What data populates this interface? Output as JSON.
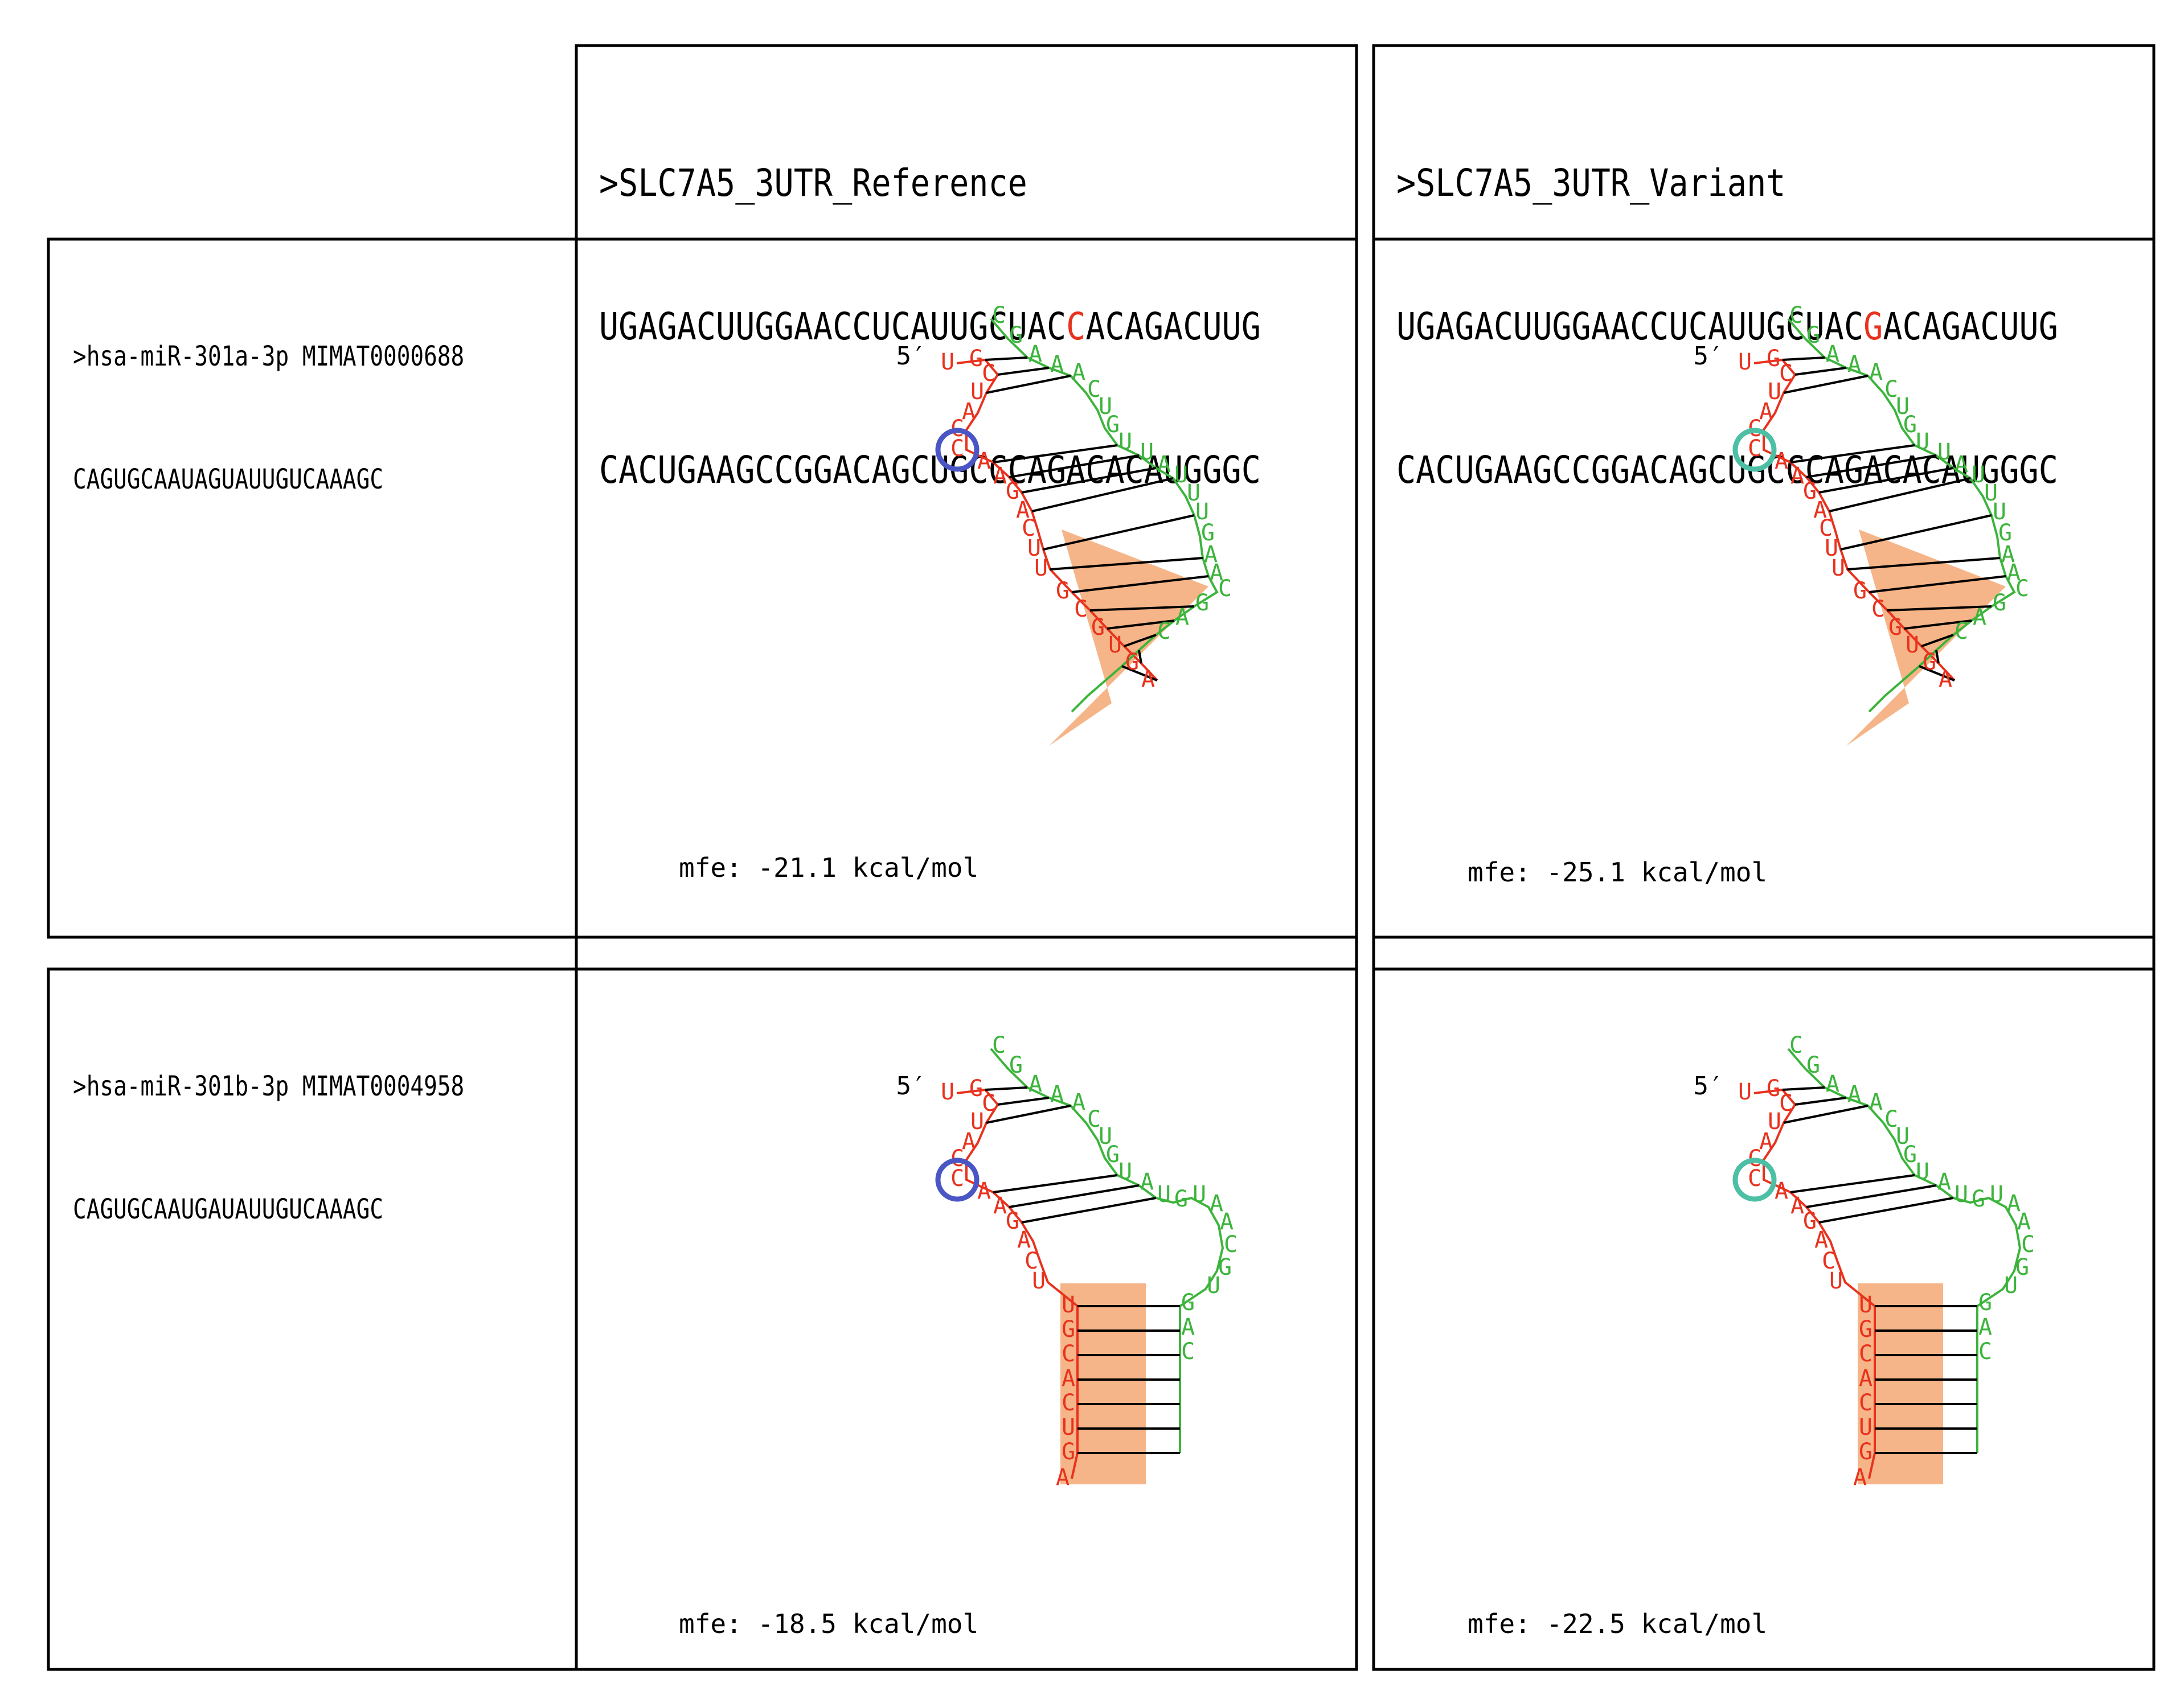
{
  "columns": [
    {
      "header_name": ">SLC7A5_3UTR_Reference",
      "seq_line1_pre": "UGAGACUUGGAACCUCAUUGCUAC",
      "seq_line1_mut": "C",
      "seq_line1_post": "ACAGACUUG",
      "seq_line2": "CACUGAAGCCGGACAGCUGCCCAGACACAUGGGC"
    },
    {
      "header_name": ">SLC7A5_3UTR_Variant",
      "seq_line1_pre": "UGAGACUUGGAACCUCAUUGCUAC",
      "seq_line1_mut": "G",
      "seq_line1_post": "ACAGACUUG",
      "seq_line2": "CACUGAAGCCGGACAGCUGCCCAGACACAUGGGC"
    }
  ],
  "rows": [
    {
      "mirna_name": ">hsa-miR-301a-3p MIMAT0000688",
      "mirna_seq": "CAGUGCAAUAGUAUUGUCAAAGC",
      "mfe": [
        "mfe: -21.1 kcal/mol",
        "mfe: -25.1 kcal/mol"
      ]
    },
    {
      "mirna_name": ">hsa-miR-301b-3p MIMAT0004958",
      "mirna_seq": "CAGUGCAAUGAUAUUGUCAAAGC",
      "mfe": [
        "mfe: -18.5 kcal/mol",
        "mfe: -22.5 kcal/mol"
      ]
    }
  ],
  "five_prime_label": "5′",
  "structures": {
    "row0": {
      "red_bases": [
        "U",
        "G",
        "C",
        "U",
        "A",
        "C",
        "C",
        "A",
        "A",
        "G",
        "A",
        "C",
        "U",
        "U",
        "G",
        "C",
        "G",
        "U",
        "G",
        "A"
      ],
      "green_bases": [
        "C",
        "G",
        "A",
        "A",
        "A",
        "C",
        "U",
        "G",
        "U",
        "U",
        "A",
        "U",
        "U",
        "U",
        "G",
        "A",
        "A",
        "C",
        "G",
        "A",
        "C"
      ]
    },
    "row1": {
      "red_bases": [
        "U",
        "G",
        "C",
        "U",
        "A",
        "C",
        "C",
        "A",
        "A",
        "G",
        "A",
        "C",
        "U",
        "U",
        "G",
        "C",
        "A",
        "C",
        "U",
        "G",
        "A"
      ],
      "green_bases": [
        "C",
        "G",
        "A",
        "A",
        "A",
        "C",
        "U",
        "G",
        "U",
        "A",
        "U",
        "G",
        "U",
        "A",
        "A",
        "C",
        "G",
        "U",
        "G",
        "A",
        "C"
      ]
    }
  },
  "colors": {
    "target_strand": "#e8321e",
    "mirna_strand": "#3cb43c",
    "pair_line": "#000000",
    "seed_highlight": "#f4a26a",
    "ref_circle": "#4a56c4",
    "var_circle": "#4cbfa4",
    "mutation_text": "#e8321e"
  }
}
